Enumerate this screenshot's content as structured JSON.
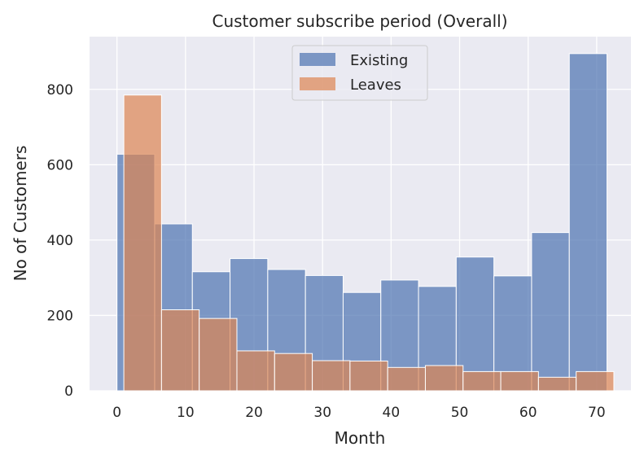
{
  "chart_data": {
    "type": "bar",
    "title": "Customer subscribe period (Overall)",
    "xlabel": "Month",
    "ylabel": "No of Customers",
    "xlim": [
      -4,
      75
    ],
    "ylim": [
      0,
      940
    ],
    "xticks": [
      0,
      10,
      20,
      30,
      40,
      50,
      60,
      70
    ],
    "yticks": [
      0,
      200,
      400,
      600,
      800
    ],
    "grid": true,
    "legend_position": "top-center",
    "series": [
      {
        "name": "Existing",
        "color": "#4c72b0",
        "bin_edges": [
          0,
          5.5,
          11,
          16.5,
          22,
          27.5,
          33,
          38.5,
          44,
          49.5,
          55,
          60.5,
          66,
          71.5
        ],
        "values": [
          628,
          443,
          316,
          351,
          322,
          306,
          261,
          294,
          277,
          355,
          305,
          420,
          895
        ]
      },
      {
        "name": "Leaves",
        "color": "#dd8452",
        "bin_edges": [
          1,
          6.5,
          12,
          17.5,
          23,
          28.5,
          34,
          39.5,
          45,
          50.5,
          56,
          61.5,
          67,
          72.5
        ],
        "values": [
          785,
          215,
          192,
          106,
          99,
          80,
          79,
          62,
          67,
          51,
          51,
          36,
          51
        ]
      }
    ]
  }
}
